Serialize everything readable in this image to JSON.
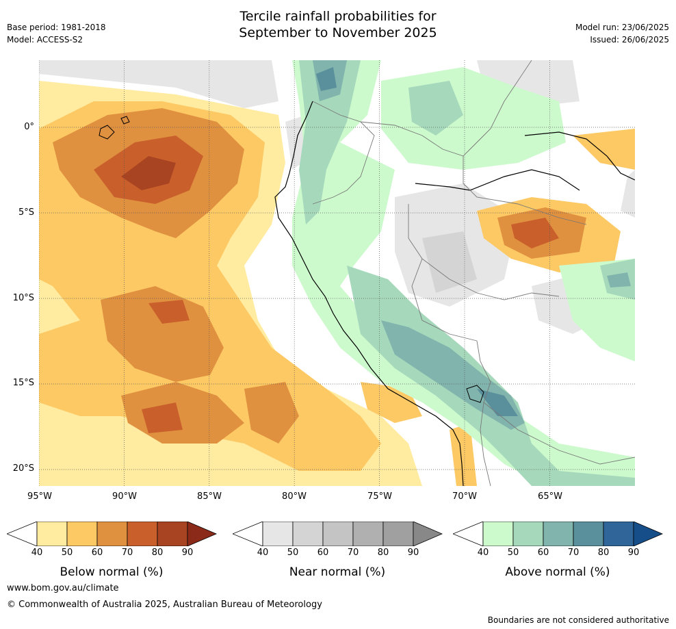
{
  "header": {
    "title_line1": "Tercile rainfall probabilities for",
    "title_line2": "September to November 2025",
    "base_period": "Base period: 1981-2018",
    "model": "Model: ACCESS-S2",
    "model_run": "Model run: 23/06/2025",
    "issued": "Issued: 26/06/2025"
  },
  "map": {
    "lon_ticks": [
      "95°W",
      "90°W",
      "85°W",
      "80°W",
      "75°W",
      "70°W",
      "65°W"
    ],
    "lat_ticks": [
      "0°",
      "5°S",
      "10°S",
      "15°S",
      "20°S"
    ]
  },
  "colorbars": [
    {
      "title": "Below normal (%)",
      "ticks": [
        "40",
        "50",
        "60",
        "70",
        "80",
        "90"
      ],
      "colors": [
        "#ffeca1",
        "#fdc964",
        "#e09140",
        "#c9602c",
        "#a84422"
      ],
      "extend_color": "#8c2a1a"
    },
    {
      "title": "Near normal (%)",
      "ticks": [
        "40",
        "50",
        "60",
        "70",
        "80",
        "90"
      ],
      "colors": [
        "#e6e6e6",
        "#d4d4d4",
        "#c4c4c4",
        "#b0b0b0",
        "#a0a0a0"
      ],
      "extend_color": "#888888"
    },
    {
      "title": "Above normal (%)",
      "ticks": [
        "40",
        "50",
        "60",
        "70",
        "80",
        "90"
      ],
      "colors": [
        "#ccfacc",
        "#a6d8bc",
        "#80b4ac",
        "#5a8f9c",
        "#30659a"
      ],
      "extend_color": "#164e8a"
    }
  ],
  "footer": {
    "url": "www.bom.gov.au/climate",
    "copyright": "© Commonwealth of Australia 2025, Australian Bureau of Meteorology",
    "disclaimer": "Boundaries are not considered authoritative"
  }
}
